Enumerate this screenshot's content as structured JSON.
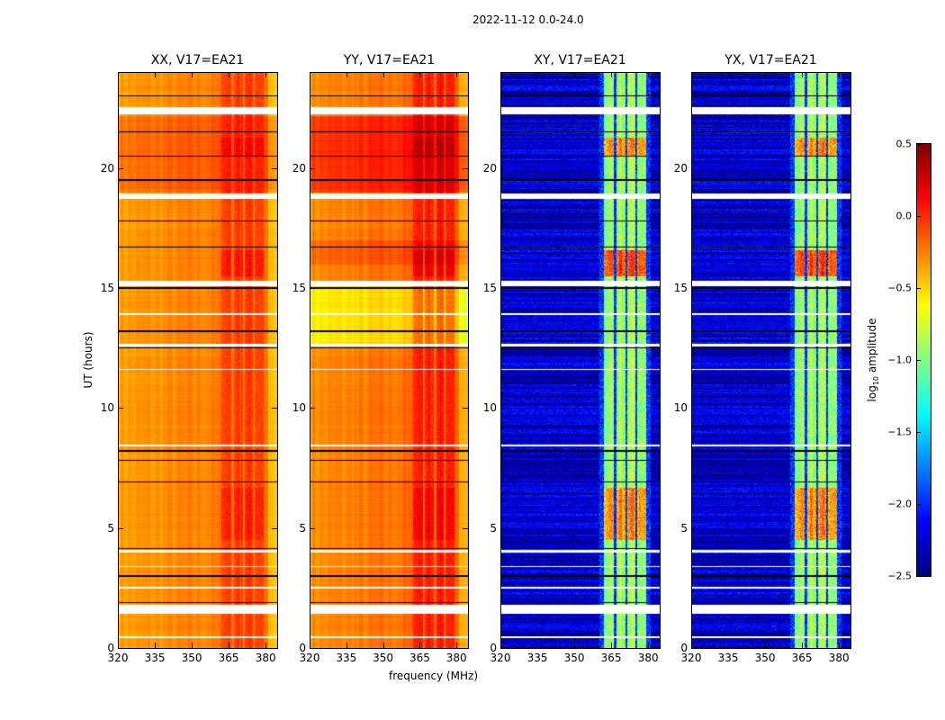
{
  "chart_data": {
    "type": "heatmap",
    "suptitle": "2022-11-12 0.0-24.0",
    "xlabel": "frequency (MHz)",
    "ylabel": "UT (hours)",
    "xlim": [
      320,
      384.7
    ],
    "ylim": [
      0,
      24
    ],
    "xticks": [
      "320",
      "335",
      "350",
      "365",
      "380"
    ],
    "xtick_values": [
      320,
      335,
      350,
      365,
      380
    ],
    "yticks": [
      "0",
      "5",
      "10",
      "15",
      "20"
    ],
    "ytick_values": [
      0,
      5,
      10,
      15,
      20
    ],
    "colormap": "jet",
    "colorbar": {
      "label_main": "log",
      "label_sub": "10",
      "label_rest": " amplitude",
      "range": [
        -2.5,
        0.5
      ],
      "ticks": [
        "0.5",
        "0.0",
        "−0.5",
        "−1.0",
        "−1.5",
        "−2.0",
        "−2.5"
      ],
      "tick_values": [
        0.5,
        0,
        -0.5,
        -1,
        -1.5,
        -2,
        -2.5
      ]
    },
    "panels": [
      {
        "title": "XX, V17=EA21",
        "baseline": -0.35,
        "band_level": -0.05
      },
      {
        "title": "YY, V17=EA21",
        "baseline": -0.3,
        "band_level": 0.05
      },
      {
        "title": "XY, V17=EA21",
        "baseline": -2.3,
        "band_level": -0.9
      },
      {
        "title": "YX, V17=EA21",
        "baseline": -2.3,
        "band_level": -0.9
      }
    ],
    "bright_band_mhz": [
      [
        362,
        366
      ],
      [
        367,
        370.5
      ],
      [
        371.5,
        374.5
      ],
      [
        375.5,
        379
      ]
    ],
    "flagged_hours_white": [
      [
        1.45,
        1.8
      ],
      [
        22.25,
        22.55
      ],
      [
        18.75,
        18.95
      ],
      [
        15.1,
        15.3
      ],
      [
        12.6,
        12.7
      ],
      [
        8.4,
        8.5
      ],
      [
        4.0,
        4.1
      ],
      [
        0.45,
        0.5
      ],
      [
        11.6,
        11.65
      ],
      [
        3.4,
        3.45
      ],
      [
        2.5,
        2.55
      ],
      [
        13.9,
        13.95
      ]
    ],
    "flagged_hours_black": [
      [
        23.0,
        23.04
      ],
      [
        21.5,
        21.54
      ],
      [
        20.5,
        20.54
      ],
      [
        19.5,
        19.54
      ],
      [
        17.8,
        17.84
      ],
      [
        16.7,
        16.74
      ],
      [
        15.0,
        15.05
      ],
      [
        13.2,
        13.25
      ],
      [
        12.5,
        12.55
      ],
      [
        8.2,
        8.25
      ],
      [
        7.8,
        7.84
      ],
      [
        6.9,
        6.95
      ],
      [
        4.15,
        4.2
      ],
      [
        3.0,
        3.04
      ],
      [
        1.9,
        1.95
      ]
    ]
  }
}
